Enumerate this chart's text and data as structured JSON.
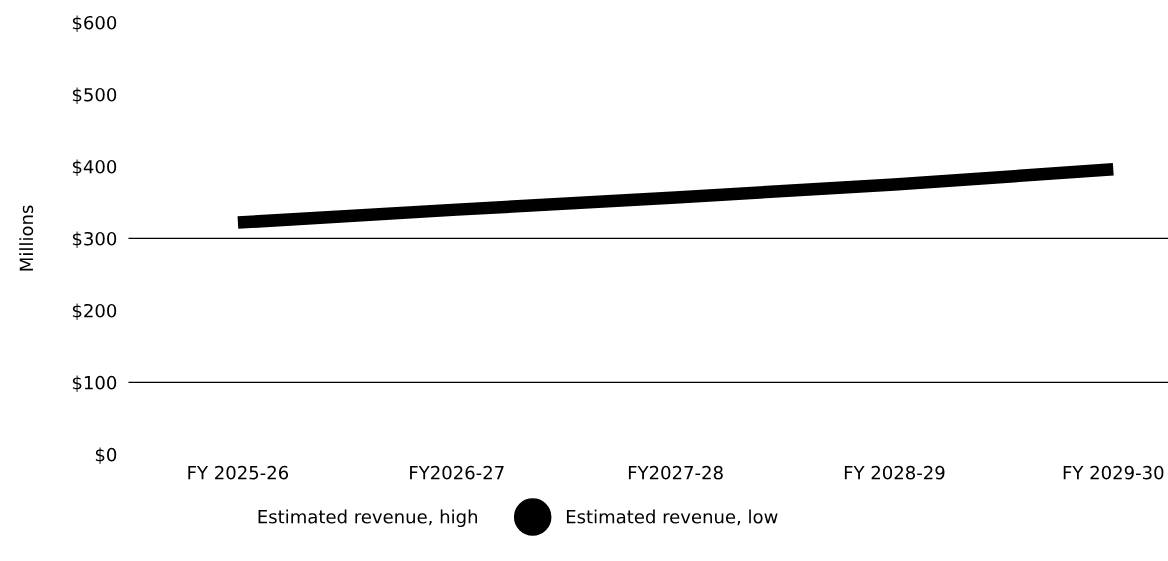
{
  "chart_data": {
    "type": "line",
    "ylabel": "Millions",
    "categories": [
      "FY 2025-26",
      "FY2026-27",
      "FY2027-28",
      "FY 2028-29",
      "FY 2029-30"
    ],
    "series": [
      {
        "name": "Estimated revenue, high",
        "values": [
          null,
          null,
          null,
          null,
          null
        ]
      },
      {
        "name": "Estimated revenue, low",
        "color": "#000000",
        "values": [
          322,
          340,
          357,
          375,
          396
        ]
      }
    ],
    "ylim": [
      0,
      600
    ],
    "yticks": [
      {
        "value": 0,
        "label": "$0"
      },
      {
        "value": 100,
        "label": "$100"
      },
      {
        "value": 200,
        "label": "$200"
      },
      {
        "value": 300,
        "label": "$300"
      },
      {
        "value": 400,
        "label": "$400"
      },
      {
        "value": 500,
        "label": "$500"
      },
      {
        "value": 600,
        "label": "$600"
      }
    ],
    "ref_lines": [
      {
        "axis": "y",
        "value": 300,
        "color": "#000000"
      },
      {
        "axis": "y",
        "value": 100,
        "color": "#000000"
      }
    ],
    "grid": false,
    "legend": "bottom",
    "marker": "none",
    "line_style": "solid"
  }
}
